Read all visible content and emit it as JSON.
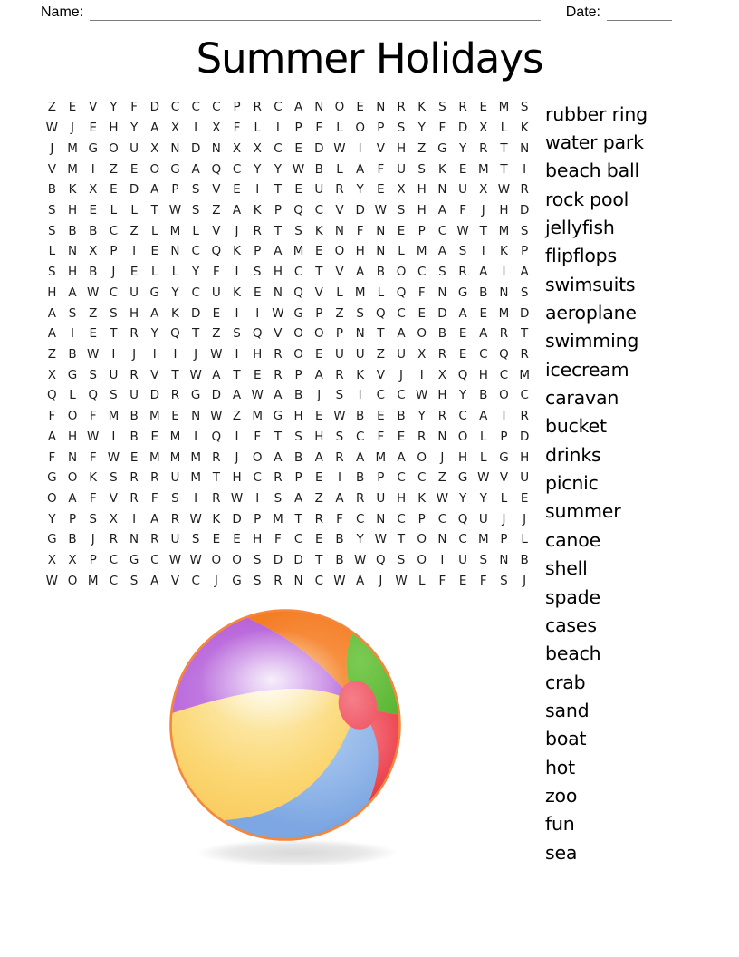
{
  "header": {
    "name_label": "Name:",
    "date_label": "Date:"
  },
  "title": "Summer Holidays",
  "puzzle": {
    "rows": [
      "ZEVYFDCCCPRCANOENRKSREMS",
      "WJEHYAXIXFLIPFLOPSYFDXLK",
      "JMGOUXNDNXXCEDWIVHZGYRTN",
      "VMIZEOGAQCYYWBLAFUSKEMTI",
      "BKXEDAPSVEITEURYEXHNUXWR",
      "SHELLTWSZAKPQCVDWSHAFJHD",
      "SBBCZLMLVJRTSKNFNEPCWTMS",
      "LNXPIENCQKPAMEOHNLMASIKP",
      "SHBJELLYFISHCTVABOCSRAIA",
      "HAWCUGYCUKENQVLMLQFNGBNS",
      "ASZSHAKDEIIWGPZSQCEDAEMD",
      "AIETRYQTZSQVOOPNTAOBEART",
      "ZBWIJIIJWIHROEUUZUXRECQR",
      "XGSURVTWATERPARKVJIXQHCM",
      "QLQSUDRGDAWABJSICCWHYBOC",
      "FOFMBMENWZMGHEWBEBYRCAIR",
      "AHWIBEMIQIFTSHSCFERNOLPD",
      "FNFWEMMMRJOABARAMAOJHLGH",
      "GOKSRRUMTHCRPEIBPCCZGWVU",
      "OAFVRFSIRWISAZARUHKWYYLE",
      "YPSXIARWKDPMTRFCNCPCQUJJ",
      "GBJRNRUSEEHFCEBYWTONCMPL",
      "XXPCGCWWOOSDDTBWQSOIUSNB",
      "WOMCSAVCJGSRNCWAJWLFEFSJ"
    ]
  },
  "word_list": {
    "words": [
      "rubber ring",
      "water park",
      "beach ball",
      "rock pool",
      "jellyfish",
      "flipflops",
      "swimsuits",
      "aeroplane",
      "swimming",
      "icecream",
      "caravan",
      "bucket",
      "drinks",
      "picnic",
      "summer",
      "canoe",
      "shell",
      "spade",
      "cases",
      "beach",
      "crab",
      "sand",
      "boat",
      "hot",
      "zoo",
      "fun",
      "sea"
    ]
  },
  "illustration": {
    "name": "beach-ball",
    "colors": {
      "rim": "#f5873c",
      "yellow_light": "#fdf2c6",
      "yellow": "#fbd671",
      "yellow_deep": "#f7c24f",
      "purple_light": "#cb97ea",
      "purple": "#b55ad6",
      "orange_light": "#f9a55d",
      "orange": "#f47d26",
      "green_light": "#7ccb52",
      "green": "#4fae2a",
      "red_light": "#f4707b",
      "red": "#e62a35",
      "blue_light": "#b7d2f4",
      "blue": "#7da7e2",
      "pole_light": "#f57f8a",
      "pole": "#ef5462"
    }
  }
}
